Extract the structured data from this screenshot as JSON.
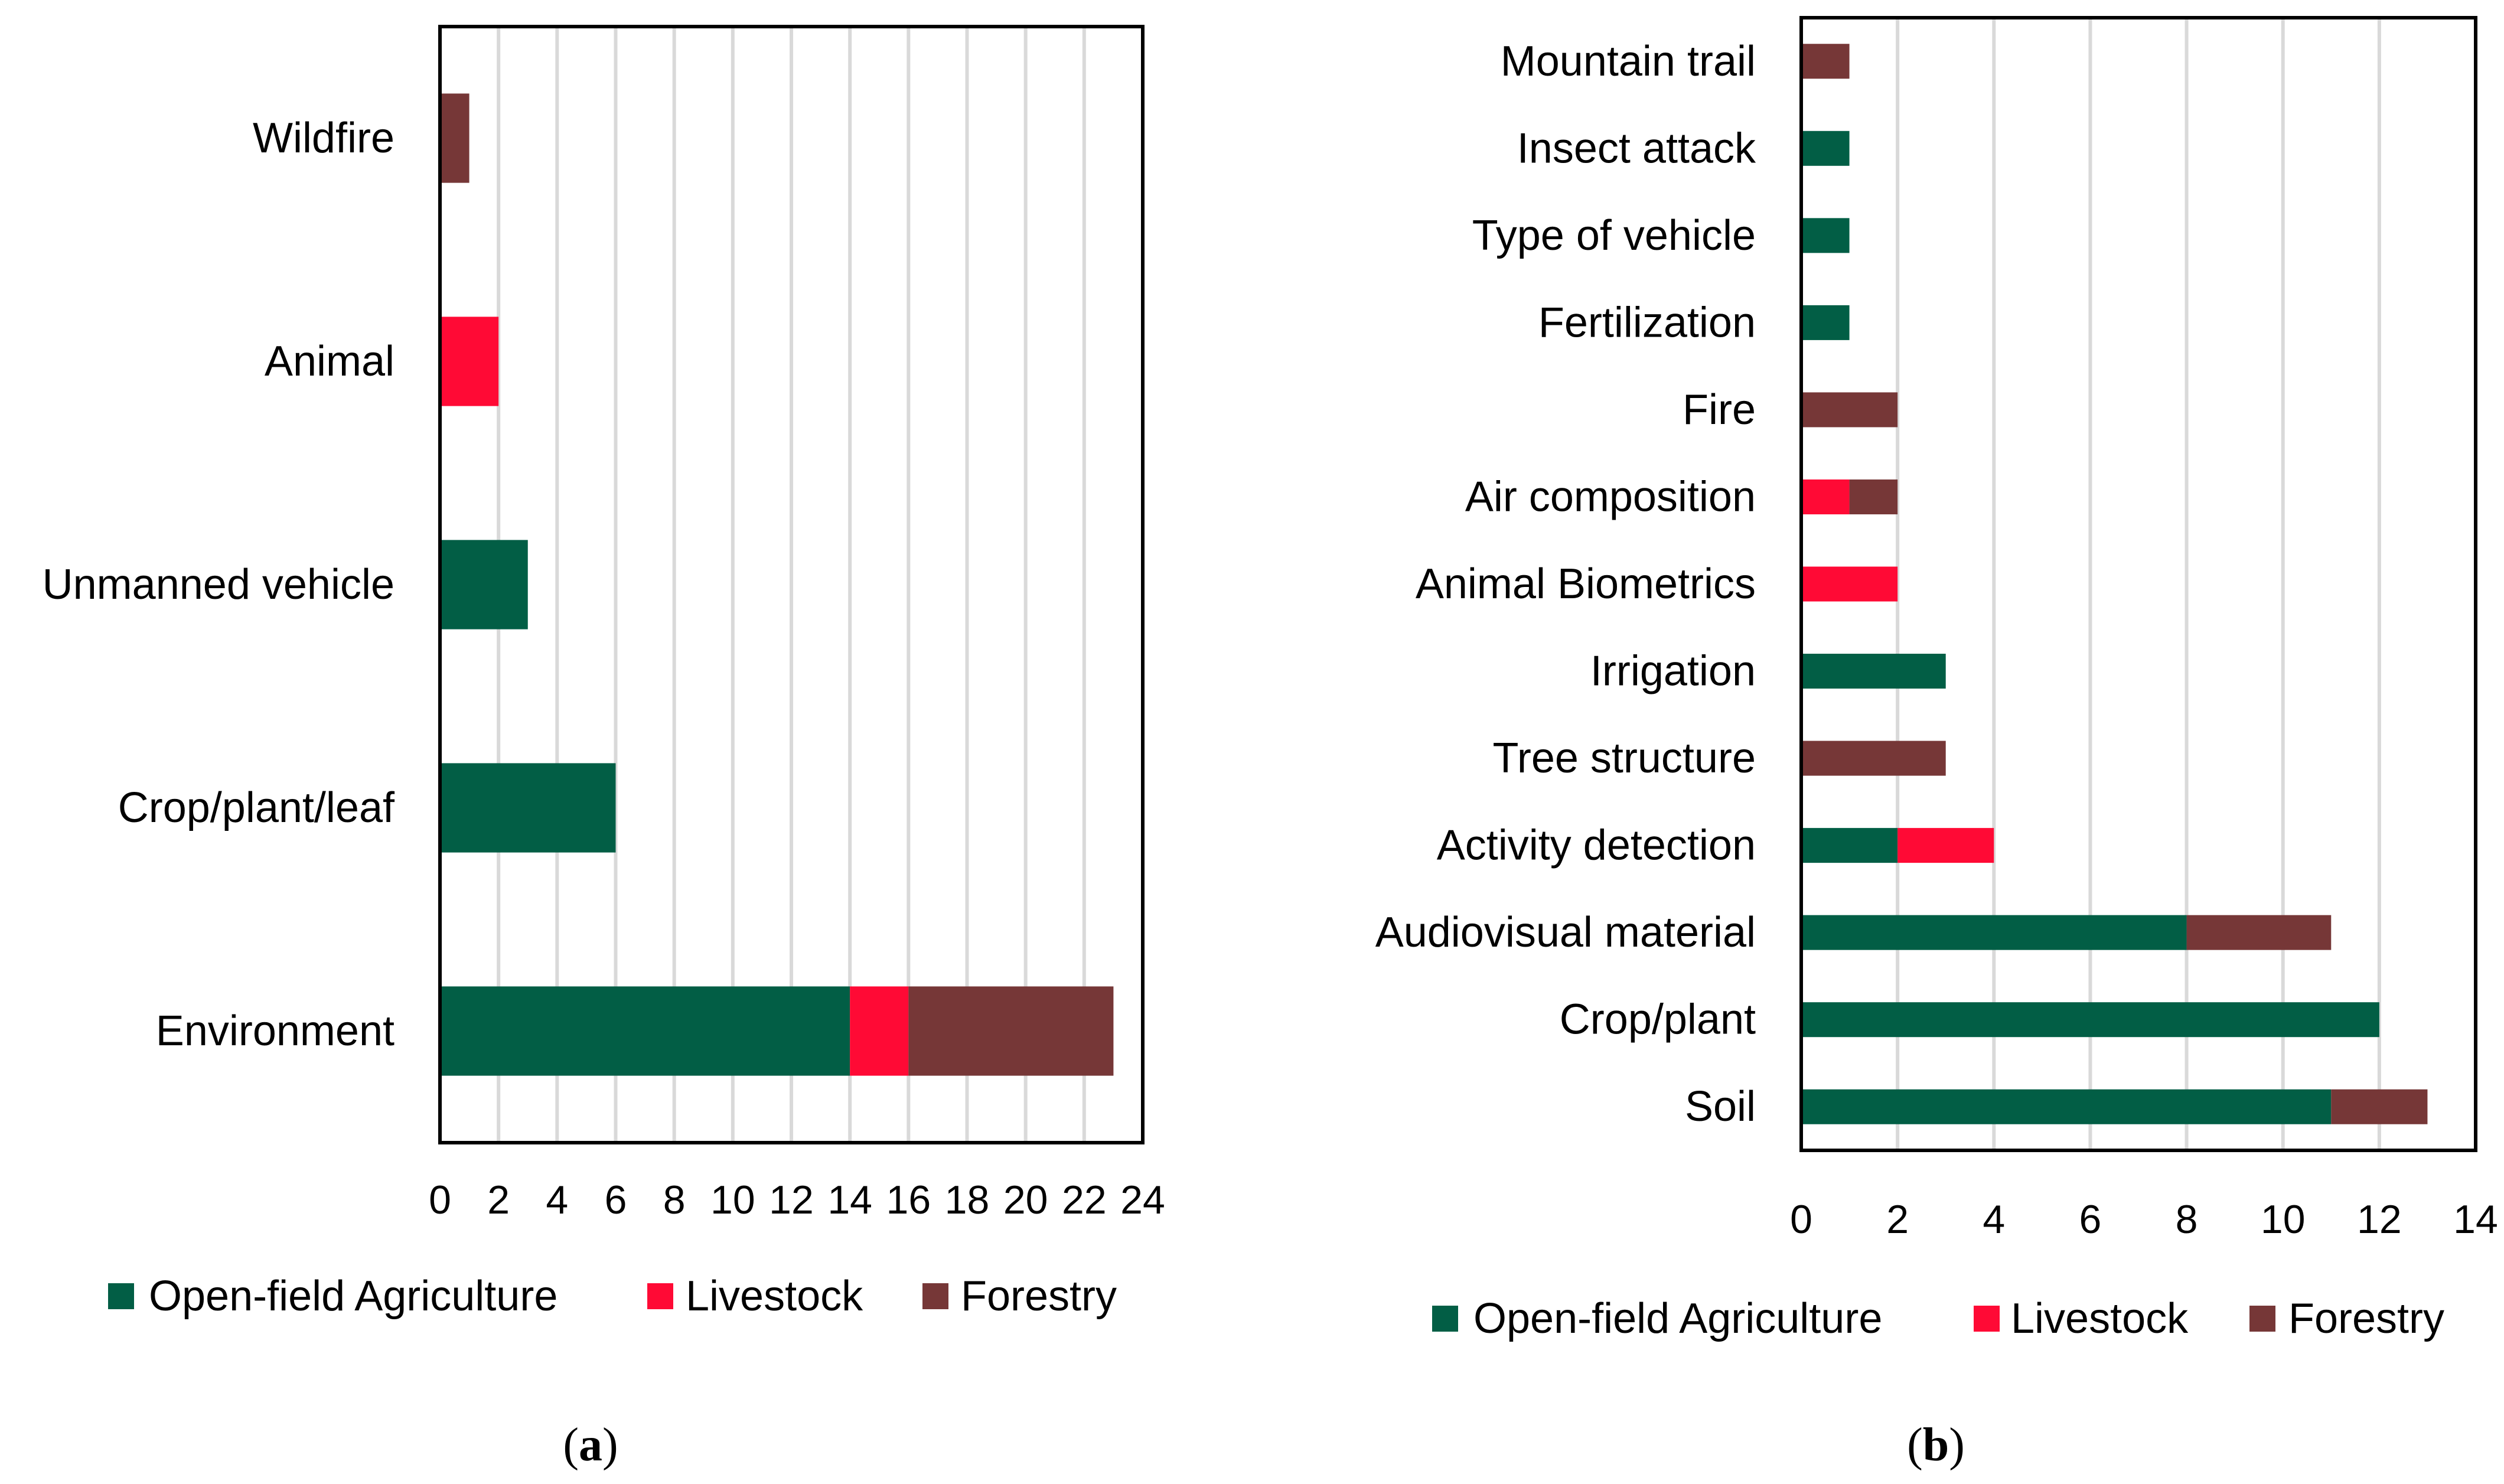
{
  "legend": [
    {
      "name": "Open-field Agriculture",
      "color": "#025e45"
    },
    {
      "name": "Livestock",
      "color": "#ff0a35"
    },
    {
      "name": "Forestry",
      "color": "#763737"
    }
  ],
  "chart_data": [
    {
      "type": "bar",
      "orientation": "horizontal",
      "stacked": true,
      "label": "a",
      "categories": [
        "Wildfire",
        "Animal",
        "Unmanned vehicle",
        "Crop/plant/leaf",
        "Environment"
      ],
      "series": [
        {
          "name": "Open-field Agriculture",
          "values": [
            0,
            0,
            3,
            6,
            14
          ]
        },
        {
          "name": "Livestock",
          "values": [
            0,
            2,
            0,
            0,
            2
          ]
        },
        {
          "name": "Forestry",
          "values": [
            1,
            0,
            0,
            0,
            7
          ]
        }
      ],
      "xlim": [
        0,
        24
      ],
      "xticks": [
        0,
        2,
        4,
        6,
        8,
        10,
        12,
        14,
        16,
        18,
        20,
        22,
        24
      ],
      "grid": "vertical",
      "legend_position": "bottom"
    },
    {
      "type": "bar",
      "orientation": "horizontal",
      "stacked": true,
      "label": "b",
      "categories": [
        "Mountain trail",
        "Insect attack",
        "Type of vehicle",
        "Fertilization",
        "Fire",
        "Air composition",
        "Animal Biometrics",
        "Irrigation",
        "Tree structure",
        "Activity detection",
        "Audiovisual material",
        "Crop/plant",
        "Soil"
      ],
      "series": [
        {
          "name": "Open-field Agriculture",
          "values": [
            0,
            1,
            1,
            1,
            0,
            0,
            0,
            3,
            0,
            2,
            8,
            12,
            11
          ]
        },
        {
          "name": "Livestock",
          "values": [
            0,
            0,
            0,
            0,
            0,
            1,
            2,
            0,
            0,
            2,
            0,
            0,
            0
          ]
        },
        {
          "name": "Forestry",
          "values": [
            1,
            0,
            0,
            0,
            2,
            1,
            0,
            0,
            3,
            0,
            3,
            0,
            2
          ]
        }
      ],
      "xlim": [
        0,
        14
      ],
      "xticks": [
        0,
        2,
        4,
        6,
        8,
        10,
        12,
        14
      ],
      "grid": "vertical",
      "legend_position": "bottom"
    }
  ]
}
